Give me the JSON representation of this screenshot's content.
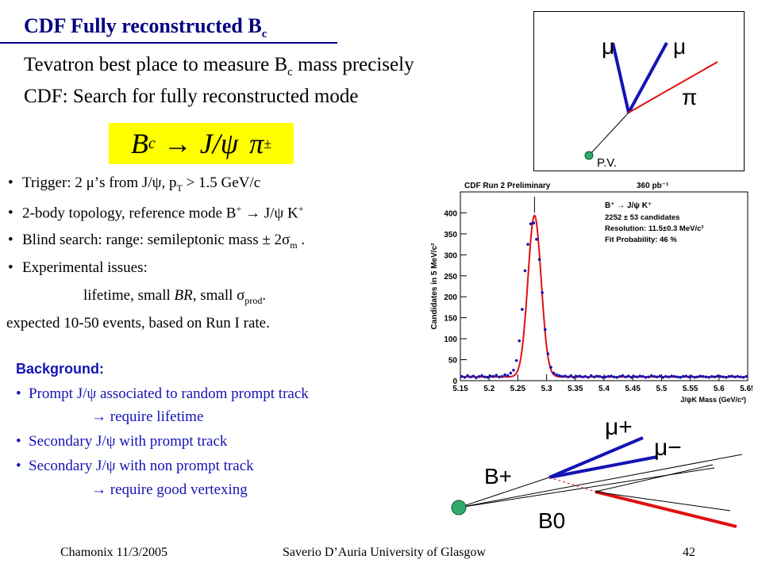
{
  "slide": {
    "title": "CDF Fully reconstructed B",
    "title_sub": "c",
    "line1_a": "Tevatron best place to measure B",
    "line1_sub": "c",
    "line1_b": " mass precisely",
    "line2": "CDF: Search for fully reconstructed mode",
    "formula": "Bₔ → J/ψ π±",
    "formula_B": "B",
    "formula_c": "c",
    "formula_arrow": "→",
    "formula_jpsi": "J/ψ",
    "formula_pi": "π",
    "formula_pm": "±"
  },
  "bullets": [
    {
      "text": "Trigger: 2 μ’s from J/ψ, p",
      "sub": "T",
      "tail": " > 1.5 GeV/c"
    },
    {
      "text": "2-body topology, reference mode B",
      "sup": "+",
      "tail": " → J/ψ K",
      "sup2": "+"
    },
    {
      "text": "Blind search: range: semileptonic mass ± 2σ",
      "sub": "m",
      "tail": " ."
    },
    {
      "text": "Experimental issues:"
    }
  ],
  "issues_line": {
    "text": "lifetime, small ",
    "br": "BR",
    "mid": ", small σ",
    "sub": "prod",
    "tail": "."
  },
  "expected": "expected 10-50 events, based on Run I rate.",
  "background": {
    "heading": "Background:",
    "items": [
      "Prompt J/ψ associated to random prompt track",
      "→ require lifetime",
      "Secondary J/ψ with prompt track",
      "Secondary J/ψ with non prompt track",
      "→ require good vertexing"
    ]
  },
  "topology": {
    "mu1": "μ",
    "mu2": "μ",
    "pi": "π",
    "pv": "P.V."
  },
  "decay": {
    "mu_plus": "μ+",
    "mu_minus": "μ−",
    "b_plus": "B+",
    "b_zero": "B0"
  },
  "footer": {
    "left": "Chamonix 11/3/2005",
    "center": "Saverio D’Auria University of Glasgow",
    "page": "42"
  },
  "chart_data": {
    "type": "scatter",
    "title": "CDF Run 2  Preliminary",
    "lumi": "360 pb⁻¹",
    "legend_decay": "B⁺ → J/ψ K⁺",
    "legend_lines": [
      "2252 ± 53 candidates",
      "Resolution: 11.5±0.3 MeV/c²",
      "Fit Probability: 46 %"
    ],
    "xlabel": "J/ψK  Mass (GeV/c²)",
    "ylabel": "Candidates in 5 MeV/c²",
    "xlim": [
      5.15,
      5.65
    ],
    "ylim": [
      0,
      450
    ],
    "xticks": [
      "5.15",
      "5.2",
      "5.25",
      "5.3",
      "5.35",
      "5.4",
      "5.45",
      "5.5",
      "5.55",
      "5.6",
      "5.65"
    ],
    "yticks": [
      "0",
      "50",
      "100",
      "150",
      "200",
      "250",
      "300",
      "350",
      "400"
    ],
    "fit_mean": 5.279,
    "fit_sigma": 0.0115,
    "fit_peak": 385,
    "fit_bkg": 9,
    "x": [
      5.1525,
      5.1575,
      5.1625,
      5.1675,
      5.1725,
      5.1775,
      5.1825,
      5.1875,
      5.1925,
      5.1975,
      5.2025,
      5.2075,
      5.2125,
      5.2175,
      5.2225,
      5.2275,
      5.2325,
      5.2375,
      5.2425,
      5.2475,
      5.2525,
      5.2575,
      5.2625,
      5.2675,
      5.2725,
      5.2775,
      5.2825,
      5.2875,
      5.2925,
      5.2975,
      5.3025,
      5.3075,
      5.3125,
      5.3175,
      5.3225,
      5.3275,
      5.3325,
      5.3375,
      5.3425,
      5.3475,
      5.3525,
      5.3575,
      5.3625,
      5.3675,
      5.3725,
      5.3775,
      5.3825,
      5.3875,
      5.3925,
      5.3975,
      5.4025,
      5.4075,
      5.4125,
      5.4175,
      5.4225,
      5.4275,
      5.4325,
      5.4375,
      5.4425,
      5.4475,
      5.4525,
      5.4575,
      5.4625,
      5.4675,
      5.4725,
      5.4775,
      5.4825,
      5.4875,
      5.4925,
      5.4975,
      5.5025,
      5.5075,
      5.5125,
      5.5175,
      5.5225,
      5.5275,
      5.5325,
      5.5375,
      5.5425,
      5.5475,
      5.5525,
      5.5575,
      5.5625,
      5.5675,
      5.5725,
      5.5775,
      5.5825,
      5.5875,
      5.5925,
      5.5975,
      5.6025,
      5.6075,
      5.6125,
      5.6175,
      5.6225,
      5.6275,
      5.6325,
      5.6375,
      5.6425,
      5.6475
    ],
    "y": [
      10,
      8,
      12,
      9,
      11,
      7,
      10,
      12,
      9,
      8,
      11,
      10,
      13,
      9,
      10,
      14,
      12,
      18,
      25,
      48,
      95,
      170,
      262,
      325,
      374,
      376,
      337,
      289,
      210,
      122,
      64,
      32,
      18,
      14,
      12,
      10,
      11,
      9,
      12,
      8,
      10,
      11,
      9,
      10,
      8,
      12,
      9,
      11,
      10,
      8,
      9,
      10,
      11,
      9,
      8,
      10,
      12,
      9,
      11,
      8,
      10,
      9,
      11,
      10,
      8,
      9,
      12,
      10,
      9,
      11,
      8,
      10,
      9,
      11,
      10,
      9,
      8,
      10,
      11,
      9,
      10,
      8,
      9,
      11,
      10,
      9,
      8,
      10,
      9,
      11,
      10,
      9,
      8,
      10,
      11,
      9,
      10,
      9,
      8,
      10
    ]
  }
}
